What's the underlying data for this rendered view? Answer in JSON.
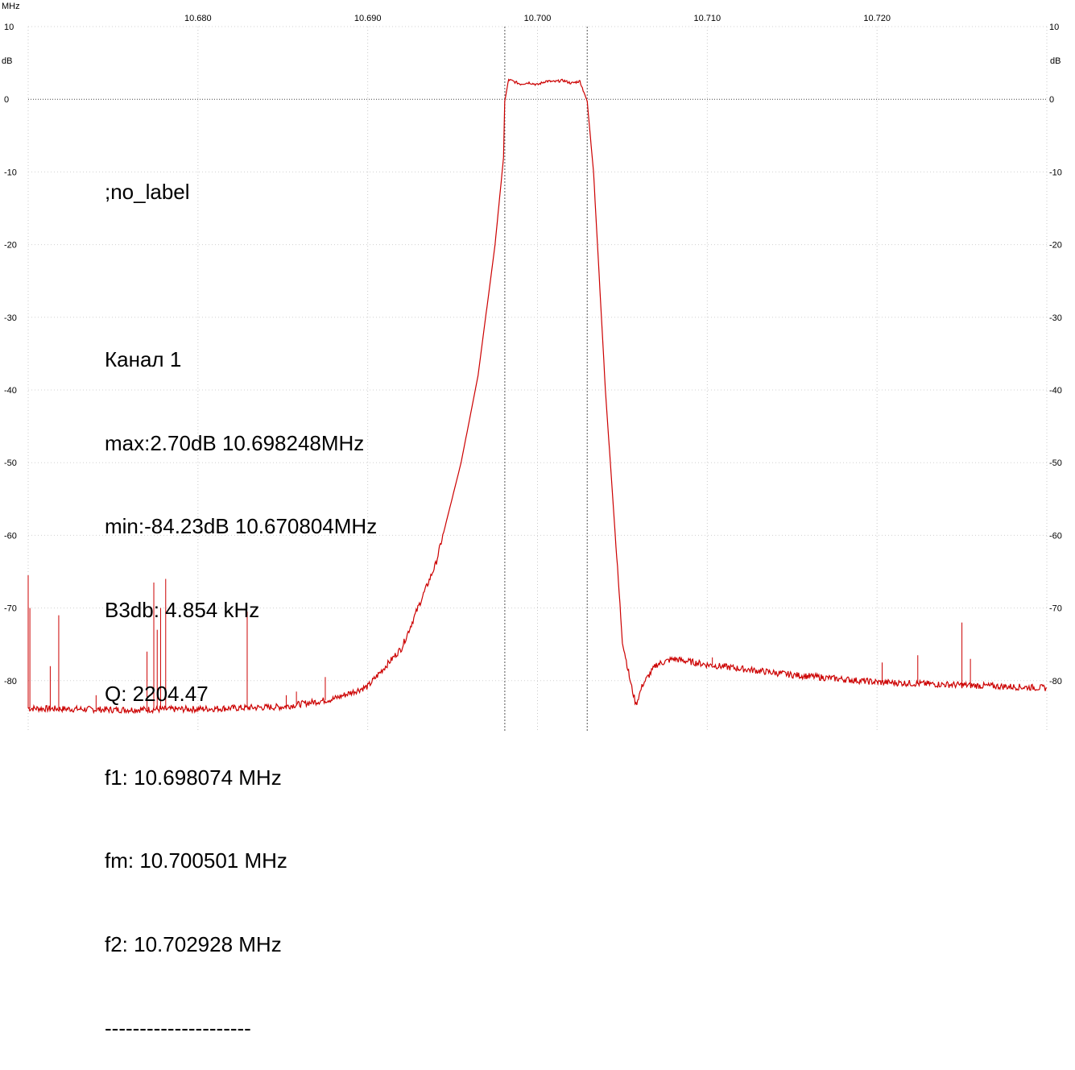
{
  "chart_data": {
    "type": "line",
    "x_unit": "MHz",
    "y_unit": "dB",
    "xlim": [
      10.67,
      10.73
    ],
    "ylim": [
      -87,
      10
    ],
    "x_ticks": [
      "10.680",
      "10.690",
      "10.700",
      "10.710",
      "10.720"
    ],
    "x_tick_values": [
      10.68,
      10.69,
      10.7,
      10.71,
      10.72
    ],
    "y_ticks": [
      "10",
      "0",
      "-10",
      "-20",
      "-30",
      "-40",
      "-50",
      "-60",
      "-70",
      "-80"
    ],
    "y_tick_values": [
      10,
      0,
      -10,
      -20,
      -30,
      -40,
      -50,
      -60,
      -70,
      -80
    ],
    "grid": true,
    "markers_x": [
      10.698074,
      10.702928
    ],
    "series": [
      {
        "color": "#cc0000",
        "x": [
          10.67,
          10.675,
          10.68,
          10.685,
          10.688,
          10.69,
          10.692,
          10.694,
          10.6955,
          10.6965,
          10.6975,
          10.698,
          10.69807,
          10.6983,
          10.699,
          10.6995,
          10.7,
          10.7005,
          10.701,
          10.7015,
          10.702,
          10.7025,
          10.70293,
          10.7033,
          10.704,
          10.705,
          10.7055,
          10.7058,
          10.7062,
          10.707,
          10.708,
          10.71,
          10.715,
          10.72,
          10.725,
          10.73
        ],
        "y": [
          -83.8,
          -84.0,
          -83.9,
          -83.6,
          -82.5,
          -80.8,
          -75.5,
          -64.0,
          -50.0,
          -38.0,
          -20.0,
          -8.0,
          -0.3,
          2.7,
          2.1,
          2.3,
          2.0,
          2.5,
          2.4,
          2.6,
          2.2,
          2.5,
          -0.3,
          -10.0,
          -40.0,
          -74.5,
          -80.5,
          -83.3,
          -80.5,
          -77.8,
          -77.0,
          -77.8,
          -79.2,
          -80.2,
          -80.6,
          -81.0
        ]
      }
    ],
    "spurs": [
      {
        "x": 10.67,
        "y": -65.5
      },
      {
        "x": 10.6701,
        "y": -70.0
      },
      {
        "x": 10.6713,
        "y": -78.0
      },
      {
        "x": 10.6718,
        "y": -71.0
      },
      {
        "x": 10.674,
        "y": -82.0
      },
      {
        "x": 10.677,
        "y": -76.0
      },
      {
        "x": 10.6774,
        "y": -66.5
      },
      {
        "x": 10.6776,
        "y": -73.0
      },
      {
        "x": 10.6778,
        "y": -70.0
      },
      {
        "x": 10.6781,
        "y": -66.0
      },
      {
        "x": 10.6829,
        "y": -70.5
      },
      {
        "x": 10.6852,
        "y": -82.0
      },
      {
        "x": 10.6858,
        "y": -81.5
      },
      {
        "x": 10.6875,
        "y": -79.5
      },
      {
        "x": 10.7103,
        "y": -76.8
      },
      {
        "x": 10.7203,
        "y": -77.5
      },
      {
        "x": 10.7224,
        "y": -76.5
      },
      {
        "x": 10.725,
        "y": -72.0
      },
      {
        "x": 10.7255,
        "y": -77.0
      }
    ]
  },
  "labels": {
    "x_unit_label": "MHz",
    "y_unit_label": "dB"
  },
  "info": {
    "lines": [
      ";no_label",
      "",
      "Канал 1",
      "max:2.70dB 10.698248MHz",
      "min:-84.23dB 10.670804MHz",
      "B3db: 4.854 kHz",
      "Q: 2204.47",
      "f1: 10.698074 MHz",
      "fm: 10.700501 MHz",
      "f2: 10.702928 MHz",
      "---------------------"
    ]
  }
}
